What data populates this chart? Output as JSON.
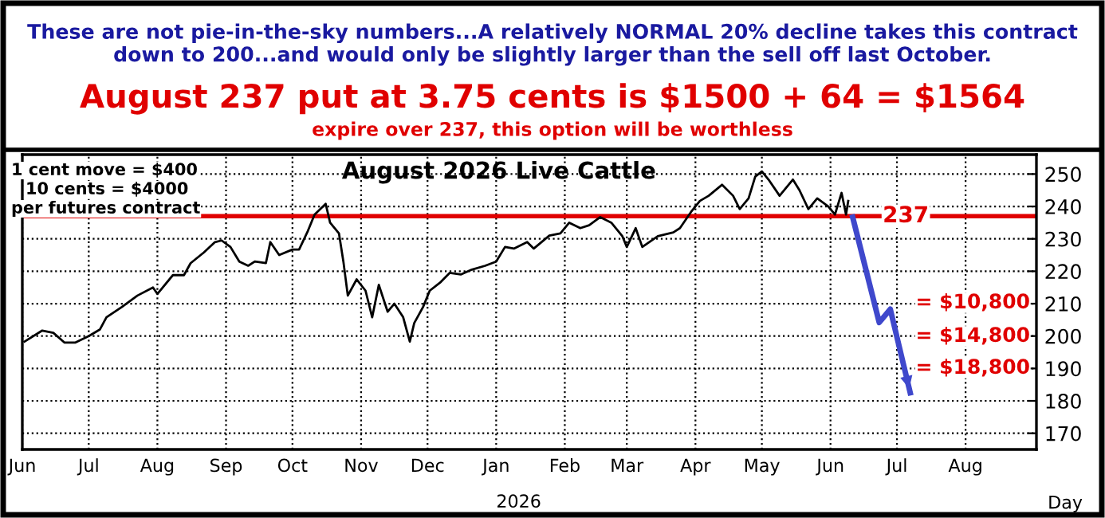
{
  "chart_data": {
    "type": "line",
    "title": "August 2026 Live Cattle",
    "subtitle": "These are not pie-in-the-sky numbers...A relatively NORMAL 20% decline takes this contract down to 200...and would only be slightly larger than the sell off last October.",
    "xlabel": "Day",
    "annotations": [
      "August 237 put at 3.75 cents is $1500 + 64 = $1564",
      "expire over 237, this option will be worthless",
      "1 cent move = $400",
      "10 cents = $4000",
      "per futures contract",
      "= $10,800",
      "= $14,800",
      "= $18,800",
      "2026"
    ],
    "series": [
      {
        "color": "#000000",
        "x": [
          "2025-06-02",
          "2025-06-10",
          "2025-06-15",
          "2025-06-20",
          "2025-06-25",
          "2025-07-01",
          "2025-07-06",
          "2025-07-09",
          "2025-07-16",
          "2025-07-23",
          "2025-07-30",
          "2025-08-01",
          "2025-08-08",
          "2025-08-13",
          "2025-08-16",
          "2025-08-22",
          "2025-08-27",
          "2025-08-30",
          "2025-09-03",
          "2025-09-07",
          "2025-09-11",
          "2025-09-14",
          "2025-09-19",
          "2025-09-21",
          "2025-09-25",
          "2025-10-01",
          "2025-10-04",
          "2025-10-08",
          "2025-10-11",
          "2025-10-16",
          "2025-10-18",
          "2025-10-22",
          "2025-10-24",
          "2025-10-26",
          "2025-10-30",
          "2025-11-03",
          "2025-11-06",
          "2025-11-09",
          "2025-11-13",
          "2025-11-16",
          "2025-11-20",
          "2025-11-23",
          "2025-11-25",
          "2025-11-29",
          "2025-12-02",
          "2025-12-07",
          "2025-12-11",
          "2025-12-16",
          "2025-12-21",
          "2025-12-27",
          "2026-01-01",
          "2026-01-05",
          "2026-01-09",
          "2026-01-15",
          "2026-01-18",
          "2026-01-25",
          "2026-01-30",
          "2026-02-03",
          "2026-02-08",
          "2026-02-12",
          "2026-02-17",
          "2026-02-22",
          "2026-02-27",
          "2026-03-01",
          "2026-03-05",
          "2026-03-08",
          "2026-03-15",
          "2026-03-22",
          "2026-03-25",
          "2026-03-30",
          "2026-04-03",
          "2026-04-07",
          "2026-04-13",
          "2026-04-18",
          "2026-04-21",
          "2026-04-25",
          "2026-04-28",
          "2026-05-01",
          "2026-05-04",
          "2026-05-09",
          "2026-05-15",
          "2026-05-18",
          "2026-05-22",
          "2026-05-26",
          "2026-05-31",
          "2026-06-03",
          "2026-06-06",
          "2026-06-08",
          "2026-06-09"
        ],
        "values": [
          198.3,
          201.7,
          201,
          198,
          198,
          200,
          202,
          205.8,
          209,
          212.5,
          215,
          213,
          218.8,
          218.8,
          222.5,
          225.8,
          229,
          229.5,
          227.5,
          223,
          221.7,
          223,
          222.5,
          229,
          225,
          226.7,
          226.7,
          232.5,
          237.5,
          240.8,
          235,
          231.7,
          223,
          212.5,
          217.5,
          214,
          205.8,
          215.8,
          207.5,
          210,
          205.8,
          198.3,
          204,
          209,
          214,
          216.7,
          219.5,
          219,
          220.5,
          221.7,
          223,
          227.5,
          227,
          229,
          227,
          231,
          231.7,
          235,
          233.3,
          234.2,
          236.7,
          235,
          230.8,
          227.5,
          233.3,
          227.5,
          230.8,
          232,
          233.3,
          238.3,
          241.7,
          243.3,
          246.7,
          243.3,
          239.2,
          242.5,
          249.2,
          250.8,
          248.3,
          243.3,
          248.3,
          245,
          239.2,
          242.5,
          240,
          237.5,
          244.2,
          237.5,
          241.7
        ]
      },
      {
        "color": "#3f48cc",
        "x": [
          "2026-06-11",
          "2026-06-23",
          "2026-06-28",
          "2026-07-07"
        ],
        "values": [
          236.7,
          204.2,
          208.3,
          182.5
        ]
      }
    ],
    "xlim": [
      "2025-06-01",
      "2026-09-02"
    ],
    "xticks": [
      {
        "value": "2025-06-01",
        "label": "Jun"
      },
      {
        "value": "2025-07-01",
        "label": "Jul"
      },
      {
        "value": "2025-08-01",
        "label": "Aug"
      },
      {
        "value": "2025-09-01",
        "label": "Sep"
      },
      {
        "value": "2025-10-01",
        "label": "Oct"
      },
      {
        "value": "2025-11-01",
        "label": "Nov"
      },
      {
        "value": "2025-12-01",
        "label": "Dec"
      },
      {
        "value": "2026-01-01",
        "label": "Jan"
      },
      {
        "value": "2026-02-01",
        "label": "Feb"
      },
      {
        "value": "2026-03-01",
        "label": "Mar"
      },
      {
        "value": "2026-04-01",
        "label": "Apr"
      },
      {
        "value": "2026-05-01",
        "label": "May"
      },
      {
        "value": "2026-06-01",
        "label": "Jun"
      },
      {
        "value": "2026-07-01",
        "label": "Jul"
      },
      {
        "value": "2026-08-01",
        "label": "Aug"
      }
    ],
    "ylim": [
      165,
      256
    ],
    "yticks": [
      170,
      180,
      190,
      200,
      210,
      220,
      230,
      240,
      250
    ],
    "ref_lines": [
      {
        "axis": "y",
        "value": 237,
        "label": "237",
        "color": "#e00000"
      }
    ],
    "grid": true,
    "marker": "none",
    "line_style": "solid",
    "legend": false
  }
}
